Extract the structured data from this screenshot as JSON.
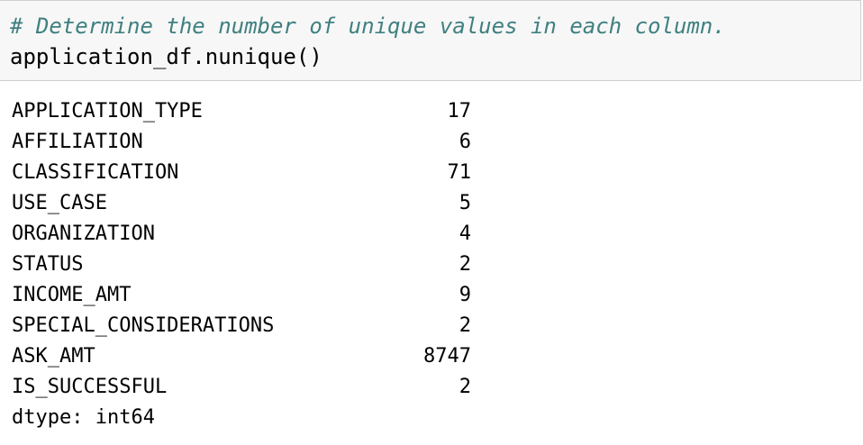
{
  "input_cell": {
    "comment": "# Determine the number of unique values in each column.",
    "code": "application_df.nunique()"
  },
  "output": {
    "rows": [
      {
        "name": "APPLICATION_TYPE",
        "value": "17"
      },
      {
        "name": "AFFILIATION",
        "value": "6"
      },
      {
        "name": "CLASSIFICATION",
        "value": "71"
      },
      {
        "name": "USE_CASE",
        "value": "5"
      },
      {
        "name": "ORGANIZATION",
        "value": "4"
      },
      {
        "name": "STATUS",
        "value": "2"
      },
      {
        "name": "INCOME_AMT",
        "value": "9"
      },
      {
        "name": "SPECIAL_CONSIDERATIONS",
        "value": "2"
      },
      {
        "name": "ASK_AMT",
        "value": "8747"
      },
      {
        "name": "IS_SUCCESSFUL",
        "value": "2"
      }
    ],
    "dtype": "dtype: int64"
  },
  "colors": {
    "cell_background": "#f7f7f7",
    "cell_border": "#cfcfcf",
    "comment": "#408080"
  }
}
